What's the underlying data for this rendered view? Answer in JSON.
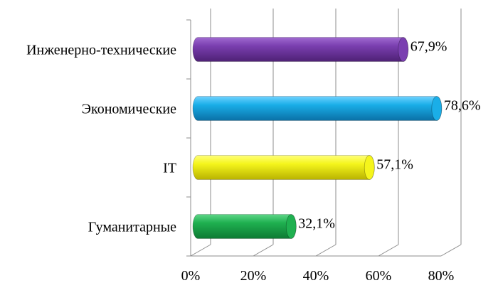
{
  "chart_data": {
    "type": "bar",
    "orientation": "horizontal",
    "style": "3d-cylinder",
    "categories": [
      "Инженерно-технические",
      "Экономические",
      "IT",
      "Гуманитарные"
    ],
    "values": [
      67.9,
      78.6,
      57.1,
      32.1
    ],
    "data_labels": [
      "67,9%",
      "78,6%",
      "57,1%",
      "32,1%"
    ],
    "colors": [
      "#7a3fb0",
      "#1aaee8",
      "#f5f51c",
      "#1fb050"
    ],
    "x_ticks": [
      "0%",
      "20%",
      "40%",
      "60%",
      "80%"
    ],
    "xlim": [
      0,
      80
    ],
    "grid": true,
    "legend": "none",
    "title": "",
    "xlabel": "",
    "ylabel": ""
  }
}
